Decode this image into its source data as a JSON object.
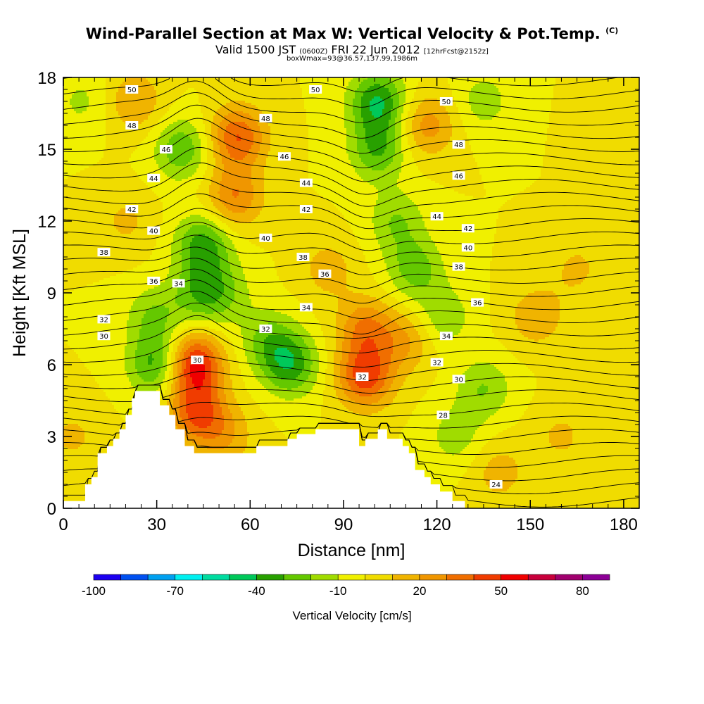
{
  "title": "Wind-Parallel Section at Max W: Vertical Velocity & Pot.Temp.",
  "title_mark": "(C)",
  "subtitle_main": "Valid 1500 JST",
  "subtitle_utc": "(0600Z)",
  "subtitle_date": "FRI 22 Jun 2012",
  "subtitle_fcst": "[12hrFcst@2152z]",
  "subtitle2": "boxWmax=93@36.57,137.99,1986m",
  "chart_data": {
    "type": "contour",
    "xlabel": "Distance [nm]",
    "ylabel": "Height [Kft MSL]",
    "xlim": [
      0,
      185
    ],
    "ylim": [
      0,
      18
    ],
    "x_ticks": [
      "0",
      "30",
      "60",
      "90",
      "120",
      "150",
      "180"
    ],
    "y_ticks": [
      "0",
      "3",
      "6",
      "9",
      "12",
      "15",
      "18"
    ],
    "colorbar": {
      "label": "Vertical Velocity [cm/s]",
      "ticks": [
        "-100",
        "-70",
        "-40",
        "-10",
        "20",
        "50",
        "80"
      ],
      "range": [
        -100,
        90
      ],
      "step": 10,
      "colors": [
        "#1c00f0",
        "#0050f0",
        "#00a0f0",
        "#00f0f0",
        "#00dca0",
        "#00c85a",
        "#28a000",
        "#64c800",
        "#a0dc00",
        "#f0f000",
        "#f0dc00",
        "#f0b400",
        "#f09600",
        "#f06e00",
        "#f03c00",
        "#f00000",
        "#c8003c",
        "#a0006e",
        "#8c0096"
      ]
    },
    "terrain": {
      "x": [
        0,
        6,
        6,
        7,
        7,
        9,
        9,
        11,
        11,
        14,
        14,
        16,
        16,
        18,
        18,
        20,
        20,
        22,
        22,
        23,
        23,
        31,
        31,
        34,
        34,
        36,
        36,
        39,
        39,
        42,
        42,
        62,
        62,
        72,
        72,
        75,
        75,
        81,
        81,
        95,
        95,
        97,
        97,
        99,
        99,
        101,
        101,
        104,
        104,
        109,
        109,
        111,
        111,
        113,
        113,
        116,
        116,
        118,
        118,
        121,
        121,
        125,
        125,
        129,
        129,
        130,
        130,
        185
      ],
      "y": [
        0.3,
        0.3,
        0.3,
        0.3,
        1,
        1,
        1.3,
        1.3,
        2.3,
        2.3,
        2.6,
        2.6,
        2.9,
        2.9,
        3.3,
        3.3,
        3.9,
        3.9,
        4.6,
        4.6,
        4.9,
        4.9,
        4.3,
        4.3,
        3.9,
        3.9,
        3.3,
        3.3,
        2.6,
        2.6,
        2.3,
        2.3,
        2.6,
        2.6,
        2.9,
        2.9,
        3.1,
        3.1,
        3.3,
        3.3,
        2.6,
        2.6,
        2.9,
        2.9,
        2.9,
        2.9,
        3.3,
        3.3,
        2.9,
        2.9,
        2.6,
        2.6,
        2.3,
        2.3,
        1.6,
        1.6,
        1.3,
        1.3,
        1,
        1,
        0.7,
        0.7,
        0.3,
        0.3,
        0,
        0
      ]
    },
    "w_blobs": [
      {
        "x": 56,
        "y": 15.5,
        "w": 40
      },
      {
        "x": 55,
        "y": 13,
        "w": 30
      },
      {
        "x": 42,
        "y": 6,
        "w": 55
      },
      {
        "x": 43,
        "y": 4,
        "w": 40
      },
      {
        "x": 97,
        "y": 5.5,
        "w": 45
      },
      {
        "x": 97,
        "y": 7.5,
        "w": 30
      },
      {
        "x": 117,
        "y": 16,
        "w": 25
      },
      {
        "x": 110,
        "y": 7,
        "w": 20
      },
      {
        "x": 23,
        "y": 17,
        "w": 20
      },
      {
        "x": 20,
        "y": 12,
        "w": 12
      },
      {
        "x": 85,
        "y": 10,
        "w": 15
      },
      {
        "x": 152,
        "y": 8,
        "w": 18
      },
      {
        "x": 165,
        "y": 10,
        "w": 12
      },
      {
        "x": 52,
        "y": 3,
        "w": 18
      },
      {
        "x": 3,
        "y": 3,
        "w": 12
      },
      {
        "x": 140,
        "y": 1.5,
        "w": 15
      },
      {
        "x": 177,
        "y": 16,
        "w": 10
      },
      {
        "x": 160,
        "y": 3,
        "w": 12
      },
      {
        "x": 38,
        "y": 15,
        "w": -28
      },
      {
        "x": 45,
        "y": 11,
        "w": -35
      },
      {
        "x": 44,
        "y": 9,
        "w": -25
      },
      {
        "x": 30,
        "y": 6,
        "w": -35
      },
      {
        "x": 29,
        "y": 8,
        "w": -20
      },
      {
        "x": 73,
        "y": 6,
        "w": -35
      },
      {
        "x": 66,
        "y": 7,
        "w": -22
      },
      {
        "x": 101,
        "y": 17,
        "w": -40
      },
      {
        "x": 101,
        "y": 15,
        "w": -30
      },
      {
        "x": 107,
        "y": 12,
        "w": -20
      },
      {
        "x": 113,
        "y": 10,
        "w": -25
      },
      {
        "x": 122,
        "y": 8,
        "w": -18
      },
      {
        "x": 135,
        "y": 5,
        "w": -20
      },
      {
        "x": 126,
        "y": 3,
        "w": -15
      },
      {
        "x": 135,
        "y": 17,
        "w": -15
      },
      {
        "x": 6,
        "y": 17,
        "w": -12
      },
      {
        "x": 52,
        "y": 9,
        "w": -15
      }
    ],
    "theta_labels": [
      {
        "text": "50",
        "x": 22,
        "y": 17.5
      },
      {
        "text": "48",
        "x": 22,
        "y": 16
      },
      {
        "text": "46",
        "x": 33,
        "y": 15
      },
      {
        "text": "44",
        "x": 29,
        "y": 13.8
      },
      {
        "text": "42",
        "x": 22,
        "y": 12.5
      },
      {
        "text": "40",
        "x": 29,
        "y": 11.6
      },
      {
        "text": "38",
        "x": 13,
        "y": 10.7
      },
      {
        "text": "36",
        "x": 29,
        "y": 9.5
      },
      {
        "text": "34",
        "x": 37,
        "y": 9.4
      },
      {
        "text": "32",
        "x": 13,
        "y": 7.9
      },
      {
        "text": "30",
        "x": 13,
        "y": 7.2
      },
      {
        "text": "30",
        "x": 43,
        "y": 6.2
      },
      {
        "text": "50",
        "x": 81,
        "y": 17.5
      },
      {
        "text": "48",
        "x": 65,
        "y": 16.3
      },
      {
        "text": "46",
        "x": 71,
        "y": 14.7
      },
      {
        "text": "44",
        "x": 78,
        "y": 13.6
      },
      {
        "text": "42",
        "x": 78,
        "y": 12.5
      },
      {
        "text": "40",
        "x": 65,
        "y": 11.3
      },
      {
        "text": "38",
        "x": 77,
        "y": 10.5
      },
      {
        "text": "36",
        "x": 84,
        "y": 9.8
      },
      {
        "text": "34",
        "x": 78,
        "y": 8.4
      },
      {
        "text": "32",
        "x": 65,
        "y": 7.5
      },
      {
        "text": "32",
        "x": 96,
        "y": 5.5
      },
      {
        "text": "50",
        "x": 123,
        "y": 17
      },
      {
        "text": "48",
        "x": 127,
        "y": 15.2
      },
      {
        "text": "46",
        "x": 127,
        "y": 13.9
      },
      {
        "text": "44",
        "x": 120,
        "y": 12.2
      },
      {
        "text": "42",
        "x": 130,
        "y": 11.7
      },
      {
        "text": "40",
        "x": 130,
        "y": 10.9
      },
      {
        "text": "38",
        "x": 127,
        "y": 10.1
      },
      {
        "text": "36",
        "x": 133,
        "y": 8.6
      },
      {
        "text": "34",
        "x": 123,
        "y": 7.2
      },
      {
        "text": "32",
        "x": 120,
        "y": 6.1
      },
      {
        "text": "30",
        "x": 127,
        "y": 5.4
      },
      {
        "text": "28",
        "x": 122,
        "y": 3.9
      },
      {
        "text": "24",
        "x": 139,
        "y": 1
      }
    ]
  }
}
